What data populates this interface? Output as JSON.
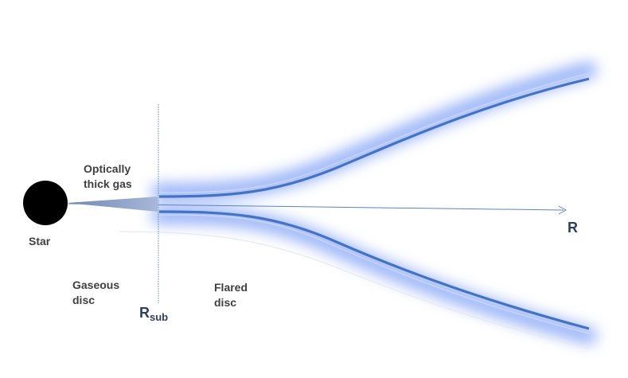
{
  "labels": {
    "optically_thick_gas_line1": "Optically",
    "optically_thick_gas_line2": "thick gas",
    "star": "Star",
    "gaseous_disc_line1": "Gaseous",
    "gaseous_disc_line2": "disc",
    "flared_disc_line1": "Flared",
    "flared_disc_line2": "disc",
    "r_sub_main": "R",
    "r_sub_subscript": "sub",
    "r_axis": "R"
  },
  "colors": {
    "disc_edge": "#4472c4",
    "disc_glow": "#7fa0f5",
    "axis_arrow": "#5b84c4",
    "gas_wedge": "#8a9fc5",
    "star": "#000000",
    "dotted_line": "#5b84c4"
  }
}
